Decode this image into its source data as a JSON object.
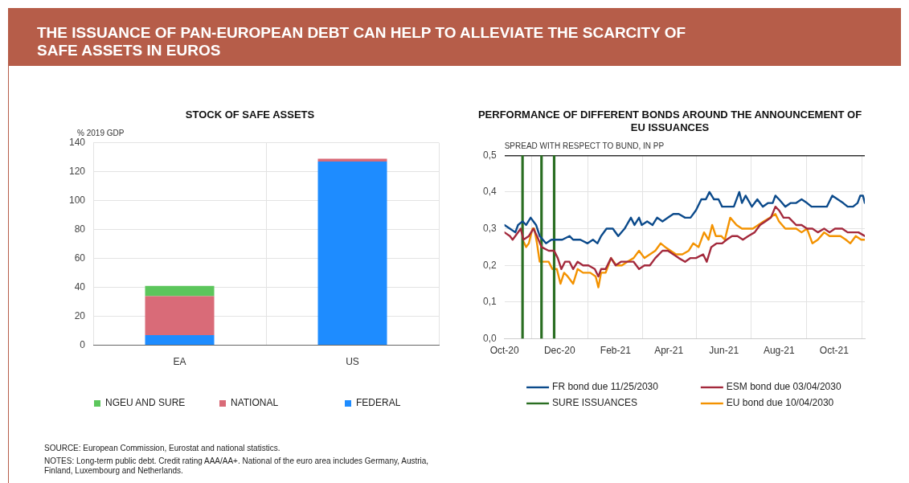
{
  "chart_data": [
    {
      "type": "other",
      "title": "THE ISSUANCE OF PAN-EUROPEAN DEBT CAN HELP TO ALLEVIATE THE SCARCITY OF SAFE ASSETS IN EUROS"
    },
    {
      "type": "bar",
      "title": "STOCK OF SAFE ASSETS",
      "ylabel": "% 2019 GDP",
      "categories": [
        "EA",
        "US"
      ],
      "stacked": true,
      "series": [
        {
          "name": "FEDERAL",
          "color": "#1e8cff",
          "values": [
            7,
            127
          ]
        },
        {
          "name": "NATIONAL",
          "color": "#d96b78",
          "values": [
            27,
            2
          ]
        },
        {
          "name": "NGEU AND SURE",
          "color": "#5cc65c",
          "values": [
            7,
            0
          ]
        }
      ],
      "ylim": [
        0,
        140
      ],
      "yticks": [
        0,
        20,
        40,
        60,
        80,
        100,
        120,
        140
      ],
      "grid": true,
      "legend": "bottom",
      "annotations": [
        "SOURCE: European Commission, Eurostat and national statistics.",
        "NOTES: Long-term public debt. Credit rating AAA/AA+. National of the euro area includes Germany, Austria, Finland, Luxembourg and Netherlands."
      ]
    },
    {
      "type": "line",
      "title": "PERFORMANCE OF DIFFERENT BONDS AROUND THE ANNOUNCEMENT OF EU ISSUANCES",
      "ylabel": "SPREAD WITH RESPECT TO BUND, IN PP",
      "marker": "none",
      "grid": true,
      "legend": "bottom",
      "xlim": [
        "2020-10-01",
        "2021-11-04"
      ],
      "xticks": [
        {
          "value": "2020-10-01",
          "label": "Oct-20"
        },
        {
          "value": "2020-12-01",
          "label": "Dec-20"
        },
        {
          "value": "2021-02-01",
          "label": "Feb-21"
        },
        {
          "value": "2021-04-01",
          "label": "Apr-21"
        },
        {
          "value": "2021-06-01",
          "label": "Jun-21"
        },
        {
          "value": "2021-08-01",
          "label": "Aug-21"
        },
        {
          "value": "2021-10-01",
          "label": "Oct-21"
        }
      ],
      "ylim": [
        0,
        0.5
      ],
      "yticks": [
        {
          "value": 0,
          "label": "0,0"
        },
        {
          "value": 0.1,
          "label": "0,1"
        },
        {
          "value": 0.2,
          "label": "0,2"
        },
        {
          "value": 0.3,
          "label": "0,3"
        },
        {
          "value": 0.4,
          "label": "0,4"
        },
        {
          "value": 0.5,
          "label": "0,5"
        }
      ],
      "series": [
        {
          "name": "FR bond due 11/25/2030",
          "color": "#0b4a8b",
          "x": [
            "2020-10-01",
            "2020-10-07",
            "2020-10-13",
            "2020-10-16",
            "2020-10-21",
            "2020-10-25",
            "2020-10-30",
            "2020-11-02",
            "2020-11-05",
            "2020-11-09",
            "2020-11-16",
            "2020-11-22",
            "2020-11-28",
            "2020-12-04",
            "2020-12-12",
            "2020-12-16",
            "2020-12-24",
            "2021-01-01",
            "2021-01-07",
            "2021-01-12",
            "2021-01-16",
            "2021-01-22",
            "2021-01-29",
            "2021-02-04",
            "2021-02-11",
            "2021-02-18",
            "2021-02-22",
            "2021-02-27",
            "2021-03-02",
            "2021-03-08",
            "2021-03-14",
            "2021-03-19",
            "2021-03-25",
            "2021-03-31",
            "2021-04-06",
            "2021-04-12",
            "2021-04-19",
            "2021-04-25",
            "2021-05-01",
            "2021-05-07",
            "2021-05-12",
            "2021-05-16",
            "2021-05-21",
            "2021-05-26",
            "2021-05-30",
            "2021-06-05",
            "2021-06-12",
            "2021-06-18",
            "2021-06-21",
            "2021-06-25",
            "2021-07-02",
            "2021-07-08",
            "2021-07-14",
            "2021-07-20",
            "2021-07-25",
            "2021-07-28",
            "2021-08-01",
            "2021-08-08",
            "2021-08-14",
            "2021-08-20",
            "2021-08-26",
            "2021-09-01",
            "2021-09-06",
            "2021-09-12",
            "2021-09-18",
            "2021-09-23",
            "2021-09-29",
            "2021-10-05",
            "2021-10-11",
            "2021-10-16",
            "2021-10-22",
            "2021-10-27",
            "2021-10-30",
            "2021-11-02",
            "2021-11-04"
          ],
          "values": [
            0.31,
            0.3,
            0.29,
            0.31,
            0.32,
            0.31,
            0.33,
            0.32,
            0.31,
            0.28,
            0.26,
            0.27,
            0.27,
            0.27,
            0.28,
            0.27,
            0.27,
            0.26,
            0.27,
            0.26,
            0.28,
            0.3,
            0.3,
            0.28,
            0.3,
            0.33,
            0.31,
            0.33,
            0.31,
            0.32,
            0.31,
            0.33,
            0.32,
            0.33,
            0.34,
            0.34,
            0.33,
            0.33,
            0.35,
            0.38,
            0.38,
            0.4,
            0.38,
            0.38,
            0.36,
            0.36,
            0.36,
            0.4,
            0.37,
            0.39,
            0.36,
            0.38,
            0.36,
            0.37,
            0.37,
            0.39,
            0.38,
            0.36,
            0.37,
            0.37,
            0.38,
            0.37,
            0.36,
            0.36,
            0.36,
            0.36,
            0.39,
            0.38,
            0.37,
            0.36,
            0.36,
            0.37,
            0.39,
            0.39,
            0.37
          ]
        },
        {
          "name": "ESM bond due 03/04/2030",
          "color": "#a3293c",
          "x": [
            "2020-10-01",
            "2020-10-07",
            "2020-10-10",
            "2020-10-13",
            "2020-10-19",
            "2020-10-22",
            "2020-10-28",
            "2020-11-02",
            "2020-11-06",
            "2020-11-11",
            "2020-11-19",
            "2020-11-25",
            "2020-11-29",
            "2020-12-03",
            "2020-12-07",
            "2020-12-12",
            "2020-12-16",
            "2020-12-21",
            "2020-12-27",
            "2021-01-02",
            "2021-01-09",
            "2021-01-13",
            "2021-01-16",
            "2021-01-21",
            "2021-01-27",
            "2021-02-01",
            "2021-02-07",
            "2021-02-13",
            "2021-02-21",
            "2021-02-27",
            "2021-03-05",
            "2021-03-11",
            "2021-03-17",
            "2021-03-25",
            "2021-03-31",
            "2021-04-06",
            "2021-04-12",
            "2021-04-19",
            "2021-04-25",
            "2021-05-01",
            "2021-05-09",
            "2021-05-13",
            "2021-05-18",
            "2021-05-24",
            "2021-05-30",
            "2021-06-04",
            "2021-06-10",
            "2021-06-16",
            "2021-06-22",
            "2021-06-28",
            "2021-07-05",
            "2021-07-11",
            "2021-07-17",
            "2021-07-23",
            "2021-07-28",
            "2021-08-01",
            "2021-08-06",
            "2021-08-12",
            "2021-08-20",
            "2021-08-26",
            "2021-09-01",
            "2021-09-07",
            "2021-09-13",
            "2021-09-20",
            "2021-09-26",
            "2021-10-02",
            "2021-10-10",
            "2021-10-16",
            "2021-10-22",
            "2021-10-28",
            "2021-11-04"
          ],
          "values": [
            0.29,
            0.28,
            0.27,
            0.28,
            0.3,
            0.27,
            0.28,
            0.3,
            0.28,
            0.25,
            0.24,
            0.24,
            0.22,
            0.19,
            0.21,
            0.21,
            0.19,
            0.21,
            0.2,
            0.2,
            0.19,
            0.17,
            0.19,
            0.19,
            0.22,
            0.2,
            0.21,
            0.21,
            0.21,
            0.19,
            0.2,
            0.2,
            0.22,
            0.24,
            0.24,
            0.23,
            0.22,
            0.21,
            0.22,
            0.22,
            0.23,
            0.21,
            0.25,
            0.26,
            0.26,
            0.27,
            0.28,
            0.28,
            0.27,
            0.28,
            0.29,
            0.31,
            0.32,
            0.33,
            0.36,
            0.35,
            0.33,
            0.33,
            0.31,
            0.31,
            0.3,
            0.3,
            0.29,
            0.3,
            0.29,
            0.3,
            0.3,
            0.29,
            0.29,
            0.29,
            0.28
          ]
        },
        {
          "name": "SURE ISSUANCES",
          "type": "bar",
          "color": "#2a6e22",
          "x": [
            "2020-10-21",
            "2020-11-11",
            "2020-11-25"
          ],
          "values": [
            0.5,
            0.5,
            0.5
          ]
        },
        {
          "name": "EU bond due 10/04/2030",
          "color": "#f39200",
          "x": [
            "2020-10-21",
            "2020-10-25",
            "2020-10-28",
            "2020-11-01",
            "2020-11-03",
            "2020-11-06",
            "2020-11-09",
            "2020-11-14",
            "2020-11-19",
            "2020-11-23",
            "2020-11-28",
            "2020-12-02",
            "2020-12-06",
            "2020-12-10",
            "2020-12-16",
            "2020-12-21",
            "2020-12-27",
            "2021-01-04",
            "2021-01-10",
            "2021-01-13",
            "2021-01-16",
            "2021-01-21",
            "2021-01-27",
            "2021-02-02",
            "2021-02-08",
            "2021-02-14",
            "2021-02-21",
            "2021-02-27",
            "2021-03-05",
            "2021-03-11",
            "2021-03-17",
            "2021-03-23",
            "2021-03-28",
            "2021-04-03",
            "2021-04-09",
            "2021-04-16",
            "2021-04-23",
            "2021-04-28",
            "2021-05-04",
            "2021-05-10",
            "2021-05-15",
            "2021-05-19",
            "2021-05-23",
            "2021-05-29",
            "2021-06-02",
            "2021-06-08",
            "2021-06-15",
            "2021-06-21",
            "2021-06-27",
            "2021-07-03",
            "2021-07-09",
            "2021-07-15",
            "2021-07-22",
            "2021-07-28",
            "2021-08-01",
            "2021-08-08",
            "2021-08-14",
            "2021-08-20",
            "2021-08-26",
            "2021-09-01",
            "2021-09-07",
            "2021-09-13",
            "2021-09-20",
            "2021-09-26",
            "2021-10-02",
            "2021-10-08",
            "2021-10-14",
            "2021-10-19",
            "2021-10-25",
            "2021-10-31",
            "2021-11-04"
          ],
          "values": [
            0.27,
            0.25,
            0.26,
            0.3,
            0.3,
            0.26,
            0.21,
            0.21,
            0.21,
            0.19,
            0.19,
            0.15,
            0.18,
            0.17,
            0.15,
            0.19,
            0.18,
            0.18,
            0.17,
            0.14,
            0.18,
            0.18,
            0.22,
            0.2,
            0.2,
            0.21,
            0.22,
            0.24,
            0.22,
            0.23,
            0.24,
            0.26,
            0.25,
            0.24,
            0.23,
            0.23,
            0.24,
            0.26,
            0.25,
            0.29,
            0.27,
            0.31,
            0.28,
            0.28,
            0.27,
            0.33,
            0.31,
            0.3,
            0.3,
            0.3,
            0.31,
            0.32,
            0.33,
            0.34,
            0.32,
            0.3,
            0.3,
            0.3,
            0.29,
            0.3,
            0.26,
            0.27,
            0.29,
            0.28,
            0.28,
            0.28,
            0.27,
            0.26,
            0.28,
            0.27,
            0.27
          ]
        }
      ]
    }
  ]
}
